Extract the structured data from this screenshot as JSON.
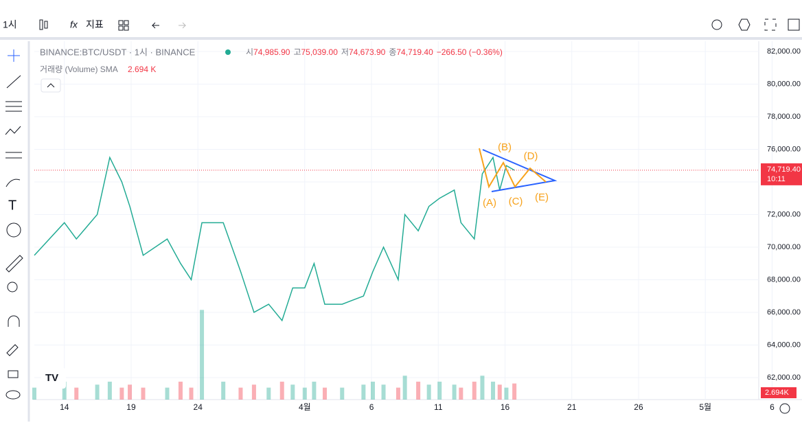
{
  "toolbar": {
    "interval": "1시",
    "indicators": "지표"
  },
  "header": {
    "symbol": "BINANCE:BTC/USDT · 1시 · BINANCE",
    "open_label": "시",
    "open": "74,985.90",
    "high_label": "고",
    "high": "75,039.00",
    "low_label": "저",
    "low": "74,673.90",
    "close_label": "종",
    "close": "74,719.40",
    "change": "−266.50 (−0.36%)"
  },
  "volume_header": {
    "label": "거래량 (Volume) SMA",
    "value": "2.694 K"
  },
  "annotations": [
    "(A)",
    "(B)",
    "(C)",
    "(D)",
    "(E)"
  ],
  "chart_data": {
    "type": "line",
    "color": "#22ab94",
    "x": [
      11.75,
      14,
      14.9,
      16.46,
      17.4,
      18.3,
      18.9,
      19.9,
      21.7,
      22.7,
      23.5,
      24.3,
      25.9,
      27.2,
      28.2,
      29.3,
      30.3,
      31.1,
      32,
      32.7,
      33.5,
      34.8,
      36.4,
      37.1,
      37.9,
      39,
      39.5,
      40.5,
      41.3,
      42.1,
      43.2,
      43.7,
      44.7,
      45.3,
      46.1,
      46.6,
      47.1,
      47.7
    ],
    "values": [
      69500,
      71500,
      70500,
      72000,
      75500,
      74000,
      72500,
      69500,
      70500,
      69000,
      68000,
      71500,
      71500,
      68500,
      66000,
      66500,
      65500,
      67500,
      67500,
      69000,
      66500,
      66500,
      67000,
      68500,
      70000,
      68000,
      72000,
      71000,
      72500,
      73000,
      73500,
      71500,
      70500,
      74500,
      75500,
      73500,
      75000,
      74719.4
    ],
    "volume": [
      2,
      3,
      2,
      2.5,
      3,
      2,
      2.5,
      2,
      2,
      3,
      2,
      15,
      3,
      2,
      2.5,
      2,
      3,
      2.5,
      2,
      3,
      2,
      2,
      2.5,
      3,
      2.5,
      2,
      4,
      3,
      2.5,
      3,
      2.5,
      2,
      3,
      4,
      3,
      2.5,
      2,
      2.694
    ],
    "volume_ylim": [
      0,
      15.5
    ],
    "xlim": [
      11.75,
      66
    ],
    "xticks": [
      {
        "value": 14,
        "label": "14"
      },
      {
        "value": 19,
        "label": "19"
      },
      {
        "value": 24,
        "label": "24"
      },
      {
        "value": 32,
        "label": "4월"
      },
      {
        "value": 37,
        "label": "6"
      },
      {
        "value": 42,
        "label": "11"
      },
      {
        "value": 47,
        "label": "16"
      },
      {
        "value": 52,
        "label": "21"
      },
      {
        "value": 57,
        "label": "26"
      },
      {
        "value": 62,
        "label": "5월"
      },
      {
        "value": 67,
        "label": "6"
      }
    ],
    "ylim": [
      60650,
      82630
    ],
    "yticks": [
      {
        "value": 62000,
        "label": "62,000.00"
      },
      {
        "value": 64000,
        "label": "64,000.00"
      },
      {
        "value": 66000,
        "label": "66,000.00"
      },
      {
        "value": 68000,
        "label": "68,000.00"
      },
      {
        "value": 70000,
        "label": "70,000.00"
      },
      {
        "value": 72000,
        "label": "72,000.00"
      },
      {
        "value": 74000,
        "label": "74,000.00"
      },
      {
        "value": 76000,
        "label": "76,000.00"
      },
      {
        "value": 78000,
        "label": "78,000.00"
      },
      {
        "value": 80000,
        "label": "80,000.00"
      },
      {
        "value": 82000,
        "label": "82,000.00"
      }
    ],
    "last_price": {
      "value": 74719.4,
      "label": "74,719.40",
      "countdown": "10:11"
    },
    "last_volume": "2.694K",
    "grid": true
  }
}
